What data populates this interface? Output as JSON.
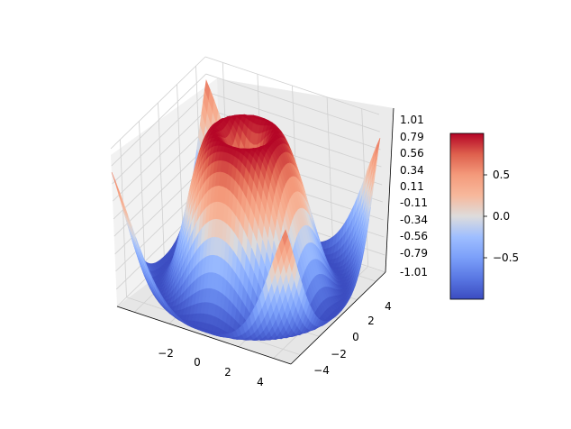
{
  "chart_data": {
    "type": "surface3d",
    "colormap": "coolwarm",
    "function": "z = sin(sqrt(x^2 + y^2))",
    "x_range": [
      -5,
      5
    ],
    "y_range": [
      -5,
      5
    ],
    "zlim": [
      -1.01,
      1.01
    ],
    "x_ticks": [
      "−2",
      "0",
      "2",
      "4"
    ],
    "y_ticks": [
      "−4",
      "−2",
      "0",
      "2",
      "4"
    ],
    "z_ticks": [
      "-1.01",
      "-0.79",
      "-0.56",
      "-0.34",
      "-0.11",
      "0.11",
      "0.34",
      "0.56",
      "0.79",
      "1.01"
    ],
    "colorbar": {
      "range": [
        -1,
        1
      ],
      "ticks": [
        {
          "value": -0.5,
          "label": "−0.5"
        },
        {
          "value": 0.0,
          "label": "0.0"
        },
        {
          "value": 0.5,
          "label": "0.5"
        }
      ]
    },
    "grid": true,
    "title": "",
    "xlabel": "",
    "ylabel": "",
    "zlabel": ""
  }
}
